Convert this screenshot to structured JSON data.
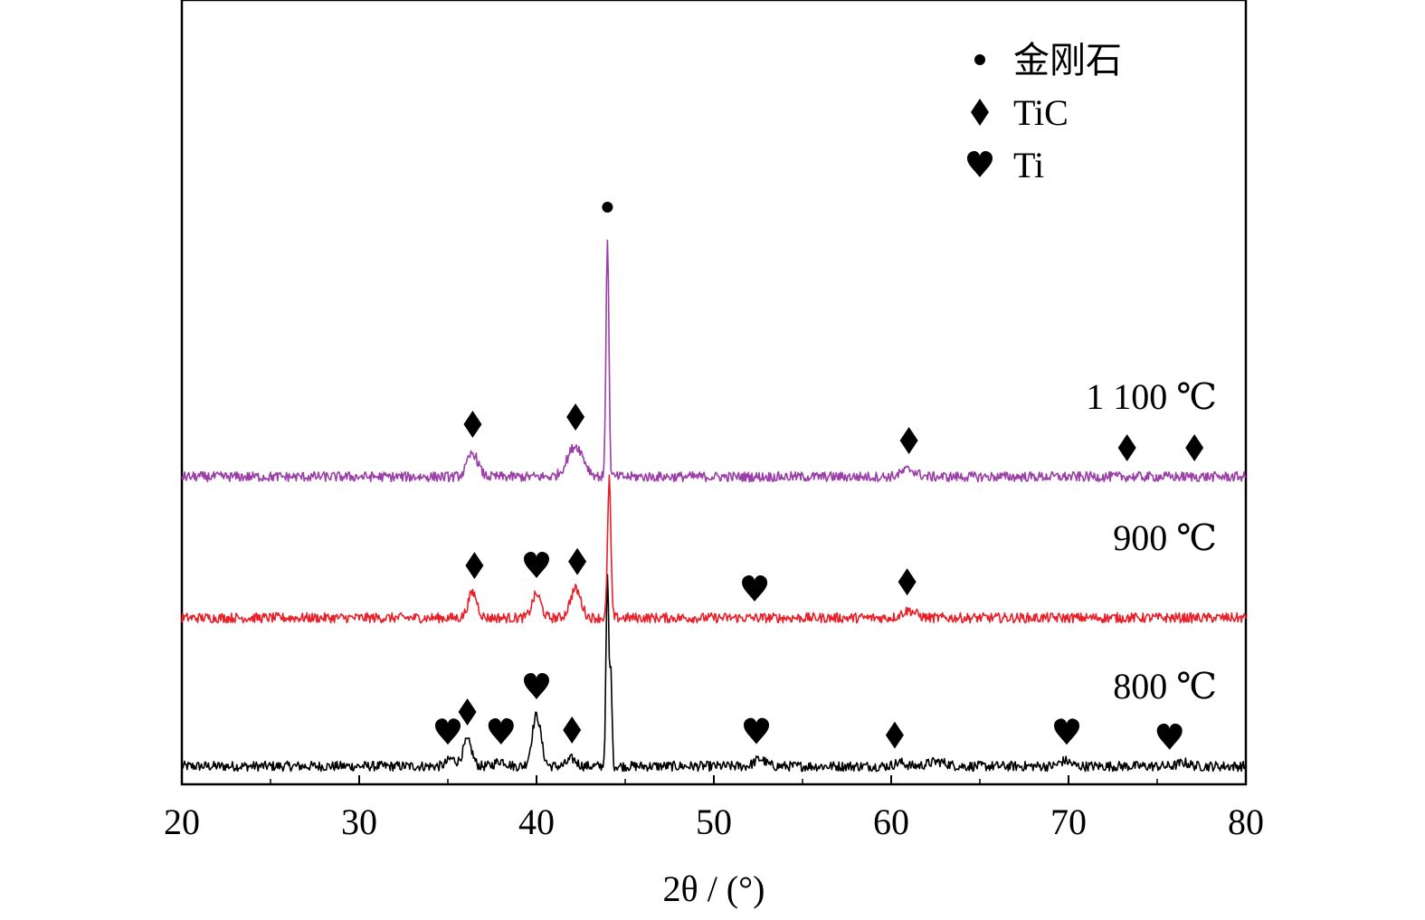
{
  "chart_data": {
    "type": "line",
    "title": "",
    "xlabel": "2θ / (°)",
    "ylabel": "",
    "xlim": [
      20,
      80
    ],
    "xticks": [
      20,
      30,
      40,
      50,
      60,
      70,
      80
    ],
    "grid": false,
    "legend": {
      "placement": "top-right",
      "entries": [
        {
          "symbol": "dot",
          "label": "金刚石"
        },
        {
          "symbol": "diamond",
          "label": "TiC"
        },
        {
          "symbol": "heart",
          "label": "Ti"
        }
      ]
    },
    "series": [
      {
        "name": "800 ℃",
        "color": "#000000",
        "baseline": 0,
        "peaks": [
          {
            "x": 35.2,
            "h": 0.4,
            "w": 0.25
          },
          {
            "x": 36.1,
            "h": 1.4,
            "w": 0.25
          },
          {
            "x": 38.0,
            "h": 0.3,
            "w": 0.3
          },
          {
            "x": 40.0,
            "h": 2.8,
            "w": 0.25
          },
          {
            "x": 42.0,
            "h": 0.4,
            "w": 0.25
          },
          {
            "x": 44.0,
            "h": 10.4,
            "w": 0.08
          },
          {
            "x": 44.2,
            "h": 5.0,
            "w": 0.06
          },
          {
            "x": 52.6,
            "h": 0.4,
            "w": 0.3
          },
          {
            "x": 60.5,
            "h": 0.2,
            "w": 0.3
          },
          {
            "x": 62.6,
            "h": 0.25,
            "w": 0.5
          },
          {
            "x": 69.8,
            "h": 0.3,
            "w": 0.3
          },
          {
            "x": 76.5,
            "h": 0.2,
            "w": 0.3
          }
        ],
        "markers": [
          {
            "x": 35.0,
            "symbol": "heart"
          },
          {
            "x": 36.1,
            "symbol": "diamond"
          },
          {
            "x": 38.0,
            "symbol": "heart"
          },
          {
            "x": 40.0,
            "symbol": "heart"
          },
          {
            "x": 42.0,
            "symbol": "diamond"
          },
          {
            "x": 52.4,
            "symbol": "heart"
          },
          {
            "x": 60.2,
            "symbol": "diamond"
          },
          {
            "x": 69.9,
            "symbol": "heart"
          },
          {
            "x": 75.7,
            "symbol": "heart"
          }
        ]
      },
      {
        "name": "900 ℃",
        "color": "#e8202a",
        "baseline": 8.2,
        "peaks": [
          {
            "x": 36.4,
            "h": 1.4,
            "w": 0.25
          },
          {
            "x": 40.0,
            "h": 1.3,
            "w": 0.25
          },
          {
            "x": 42.2,
            "h": 1.6,
            "w": 0.3
          },
          {
            "x": 44.1,
            "h": 7.8,
            "w": 0.09
          },
          {
            "x": 61.0,
            "h": 0.4,
            "w": 0.4
          }
        ],
        "markers": [
          {
            "x": 36.5,
            "symbol": "diamond"
          },
          {
            "x": 40.0,
            "symbol": "heart"
          },
          {
            "x": 42.3,
            "symbol": "diamond"
          },
          {
            "x": 52.3,
            "symbol": "heart"
          },
          {
            "x": 60.9,
            "symbol": "diamond"
          }
        ]
      },
      {
        "name": "1 100 ℃",
        "color": "#9b3ea8",
        "baseline": 16.0,
        "peaks": [
          {
            "x": 36.4,
            "h": 1.3,
            "w": 0.3
          },
          {
            "x": 42.2,
            "h": 1.7,
            "w": 0.45
          },
          {
            "x": 44.0,
            "h": 13.3,
            "w": 0.08
          },
          {
            "x": 61.0,
            "h": 0.4,
            "w": 0.4
          }
        ],
        "markers": [
          {
            "x": 36.4,
            "symbol": "diamond"
          },
          {
            "x": 42.2,
            "symbol": "diamond"
          },
          {
            "x": 44.0,
            "symbol": "dot"
          },
          {
            "x": 61.0,
            "symbol": "diamond"
          },
          {
            "x": 73.3,
            "symbol": "diamond"
          },
          {
            "x": 77.1,
            "symbol": "diamond"
          }
        ]
      }
    ]
  }
}
